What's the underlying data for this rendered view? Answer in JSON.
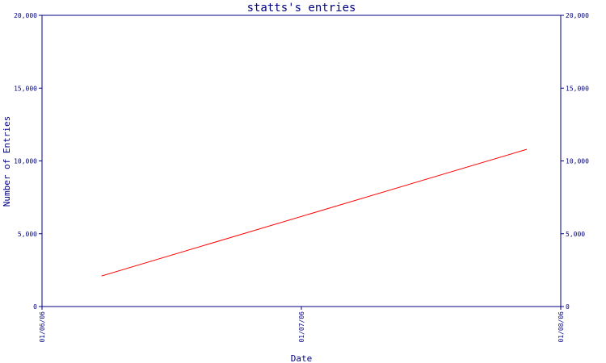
{
  "chart_data": {
    "type": "line",
    "title": "statts's entries",
    "xlabel": "Date",
    "ylabel": "Number of Entries",
    "x_ticks": [
      "01/06/06",
      "01/07/06",
      "01/08/06"
    ],
    "y_ticks": [
      "0",
      "5,000",
      "10,000",
      "15,000",
      "20,000"
    ],
    "ylim": [
      0,
      20000
    ],
    "xlim": [
      "2006-06-01",
      "2006-08-01"
    ],
    "series": [
      {
        "x": [
          "2006-06-08",
          "2006-07-28"
        ],
        "y": [
          2100,
          10800
        ]
      }
    ],
    "colors": {
      "axis": "#000080",
      "line": "#ff0000",
      "text": "#000080"
    }
  }
}
